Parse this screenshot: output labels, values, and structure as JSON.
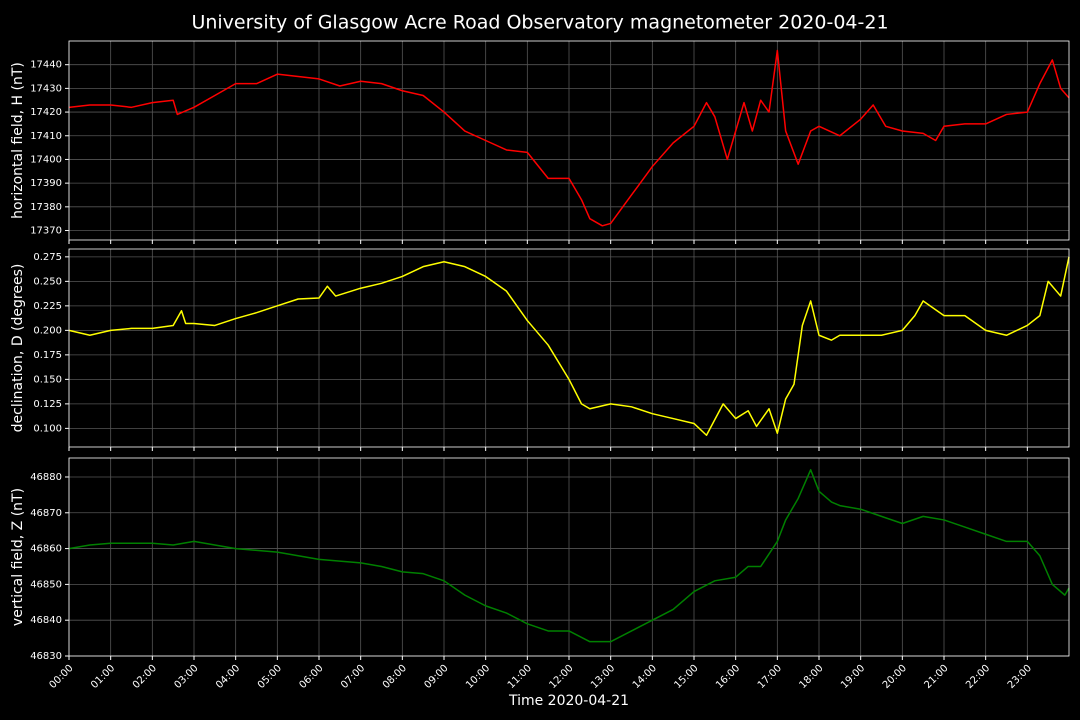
{
  "chart_data": [
    {
      "type": "line",
      "title": "University of Glasgow Acre Road Observatory magnetometer 2020-04-21",
      "ylabel": "horizontal field, H (nT)",
      "color": "#ff0000",
      "grid": true,
      "x": [
        0,
        0.5,
        1,
        1.5,
        2,
        2.5,
        2.6,
        3,
        3.5,
        4,
        4.5,
        5,
        5.5,
        6,
        6.5,
        7,
        7.5,
        8,
        8.5,
        9,
        9.5,
        10,
        10.5,
        11,
        11.5,
        12,
        12.3,
        12.5,
        12.8,
        13,
        13.5,
        14,
        14.5,
        15,
        15.3,
        15.5,
        15.8,
        16,
        16.2,
        16.4,
        16.6,
        16.8,
        17,
        17.2,
        17.5,
        17.8,
        18,
        18.5,
        19,
        19.3,
        19.6,
        20,
        20.5,
        20.8,
        21,
        21.5,
        22,
        22.5,
        23,
        23.3,
        23.6,
        23.8,
        24
      ],
      "values": [
        17422,
        17423,
        17423,
        17422,
        17424,
        17425,
        17419,
        17422,
        17427,
        17432,
        17432,
        17436,
        17435,
        17434,
        17431,
        17433,
        17432,
        17429,
        17427,
        17420,
        17412,
        17408,
        17404,
        17403,
        17392,
        17392,
        17383,
        17375,
        17372,
        17373,
        17385,
        17397,
        17407,
        17414,
        17424,
        17418,
        17400,
        17412,
        17424,
        17412,
        17425,
        17420,
        17446,
        17412,
        17398,
        17412,
        17414,
        17410,
        17417,
        17423,
        17414,
        17412,
        17411,
        17408,
        17414,
        17415,
        17415,
        17419,
        17420,
        17432,
        17442,
        17430,
        17426
      ],
      "xlim": [
        0,
        24
      ],
      "xticks": [
        0,
        1,
        2,
        3,
        4,
        5,
        6,
        7,
        8,
        9,
        10,
        11,
        12,
        13,
        14,
        15,
        16,
        17,
        18,
        19,
        20,
        21,
        22,
        23
      ],
      "ylim": [
        17366,
        17450
      ],
      "yticks": [
        17370,
        17380,
        17390,
        17400,
        17410,
        17420,
        17430,
        17440
      ]
    },
    {
      "type": "line",
      "ylabel": "declination, D (degrees)",
      "color": "#ffff00",
      "grid": true,
      "x": [
        0,
        0.5,
        1,
        1.5,
        2,
        2.5,
        2.7,
        2.8,
        3,
        3.5,
        4,
        4.5,
        5,
        5.5,
        6,
        6.2,
        6.4,
        7,
        7.5,
        8,
        8.5,
        9,
        9.5,
        10,
        10.5,
        11,
        11.5,
        12,
        12.3,
        12.5,
        13,
        13.5,
        14,
        14.5,
        15,
        15.3,
        15.7,
        16,
        16.3,
        16.5,
        16.8,
        17,
        17.2,
        17.4,
        17.6,
        17.8,
        18,
        18.3,
        18.5,
        19,
        19.5,
        20,
        20.3,
        20.5,
        21,
        21.5,
        22,
        22.5,
        23,
        23.3,
        23.5,
        23.8,
        24
      ],
      "values": [
        0.2,
        0.195,
        0.2,
        0.202,
        0.202,
        0.205,
        0.22,
        0.207,
        0.207,
        0.205,
        0.212,
        0.218,
        0.225,
        0.232,
        0.233,
        0.245,
        0.235,
        0.243,
        0.248,
        0.255,
        0.265,
        0.27,
        0.265,
        0.255,
        0.24,
        0.21,
        0.185,
        0.15,
        0.125,
        0.12,
        0.125,
        0.122,
        0.115,
        0.11,
        0.105,
        0.093,
        0.125,
        0.11,
        0.118,
        0.102,
        0.12,
        0.095,
        0.13,
        0.145,
        0.205,
        0.23,
        0.195,
        0.19,
        0.195,
        0.195,
        0.195,
        0.2,
        0.215,
        0.23,
        0.215,
        0.215,
        0.2,
        0.195,
        0.205,
        0.215,
        0.25,
        0.235,
        0.275
      ],
      "xlim": [
        0,
        24
      ],
      "xticks": [
        0,
        1,
        2,
        3,
        4,
        5,
        6,
        7,
        8,
        9,
        10,
        11,
        12,
        13,
        14,
        15,
        16,
        17,
        18,
        19,
        20,
        21,
        22,
        23
      ],
      "ylim": [
        0.081,
        0.283
      ],
      "yticks": [
        {
          "value": 0.1,
          "label": "0.100"
        },
        0.125,
        {
          "value": 0.15,
          "label": "0.150"
        },
        0.175,
        {
          "value": 0.2,
          "label": "0.200"
        },
        0.225,
        {
          "value": 0.25,
          "label": "0.250"
        },
        0.275
      ]
    },
    {
      "type": "line",
      "ylabel": "vertical field, Z (nT)",
      "xlabel": "Time 2020-04-21",
      "color": "#008000",
      "grid": true,
      "x": [
        0,
        0.5,
        1,
        2,
        2.5,
        3,
        3.5,
        4,
        5,
        5.5,
        6,
        7,
        7.5,
        8,
        8.5,
        9,
        9.5,
        10,
        10.5,
        11,
        11.5,
        12,
        12.5,
        13,
        13.5,
        14,
        14.5,
        15,
        15.5,
        16,
        16.3,
        16.6,
        17,
        17.2,
        17.5,
        17.8,
        18,
        18.3,
        18.5,
        19,
        19.5,
        20,
        20.5,
        21,
        21.5,
        22,
        22.5,
        23,
        23.3,
        23.6,
        23.9,
        24
      ],
      "values": [
        46860,
        46861,
        46861.5,
        46861.5,
        46861,
        46862,
        46861,
        46860,
        46859,
        46858,
        46857,
        46856,
        46855,
        46853.5,
        46853,
        46851,
        46847,
        46844,
        46842,
        46839,
        46837,
        46837,
        46834,
        46834,
        46837,
        46840,
        46843,
        46848,
        46851,
        46852,
        46855,
        46855,
        46862,
        46868,
        46874,
        46882,
        46876,
        46873,
        46872,
        46871,
        46869,
        46867,
        46869,
        46868,
        46866,
        46864,
        46862,
        46862,
        46858,
        46850,
        46847,
        46849
      ],
      "xlim": [
        0,
        24
      ],
      "xticks": [
        {
          "value": 0,
          "label": "00:00"
        },
        {
          "value": 1,
          "label": "01:00"
        },
        {
          "value": 2,
          "label": "02:00"
        },
        {
          "value": 3,
          "label": "03:00"
        },
        {
          "value": 4,
          "label": "04:00"
        },
        {
          "value": 5,
          "label": "05:00"
        },
        {
          "value": 6,
          "label": "06:00"
        },
        {
          "value": 7,
          "label": "07:00"
        },
        {
          "value": 8,
          "label": "08:00"
        },
        {
          "value": 9,
          "label": "09:00"
        },
        {
          "value": 10,
          "label": "10:00"
        },
        {
          "value": 11,
          "label": "11:00"
        },
        {
          "value": 12,
          "label": "12:00"
        },
        {
          "value": 13,
          "label": "13:00"
        },
        {
          "value": 14,
          "label": "14:00"
        },
        {
          "value": 15,
          "label": "15:00"
        },
        {
          "value": 16,
          "label": "16:00"
        },
        {
          "value": 17,
          "label": "17:00"
        },
        {
          "value": 18,
          "label": "18:00"
        },
        {
          "value": 19,
          "label": "19:00"
        },
        {
          "value": 20,
          "label": "20:00"
        },
        {
          "value": 21,
          "label": "21:00"
        },
        {
          "value": 22,
          "label": "22:00"
        },
        {
          "value": 23,
          "label": "23:00"
        }
      ],
      "ylim": [
        46830,
        46885.3
      ],
      "yticks": [
        46830,
        46840,
        46850,
        46860,
        46870,
        46880
      ]
    }
  ]
}
